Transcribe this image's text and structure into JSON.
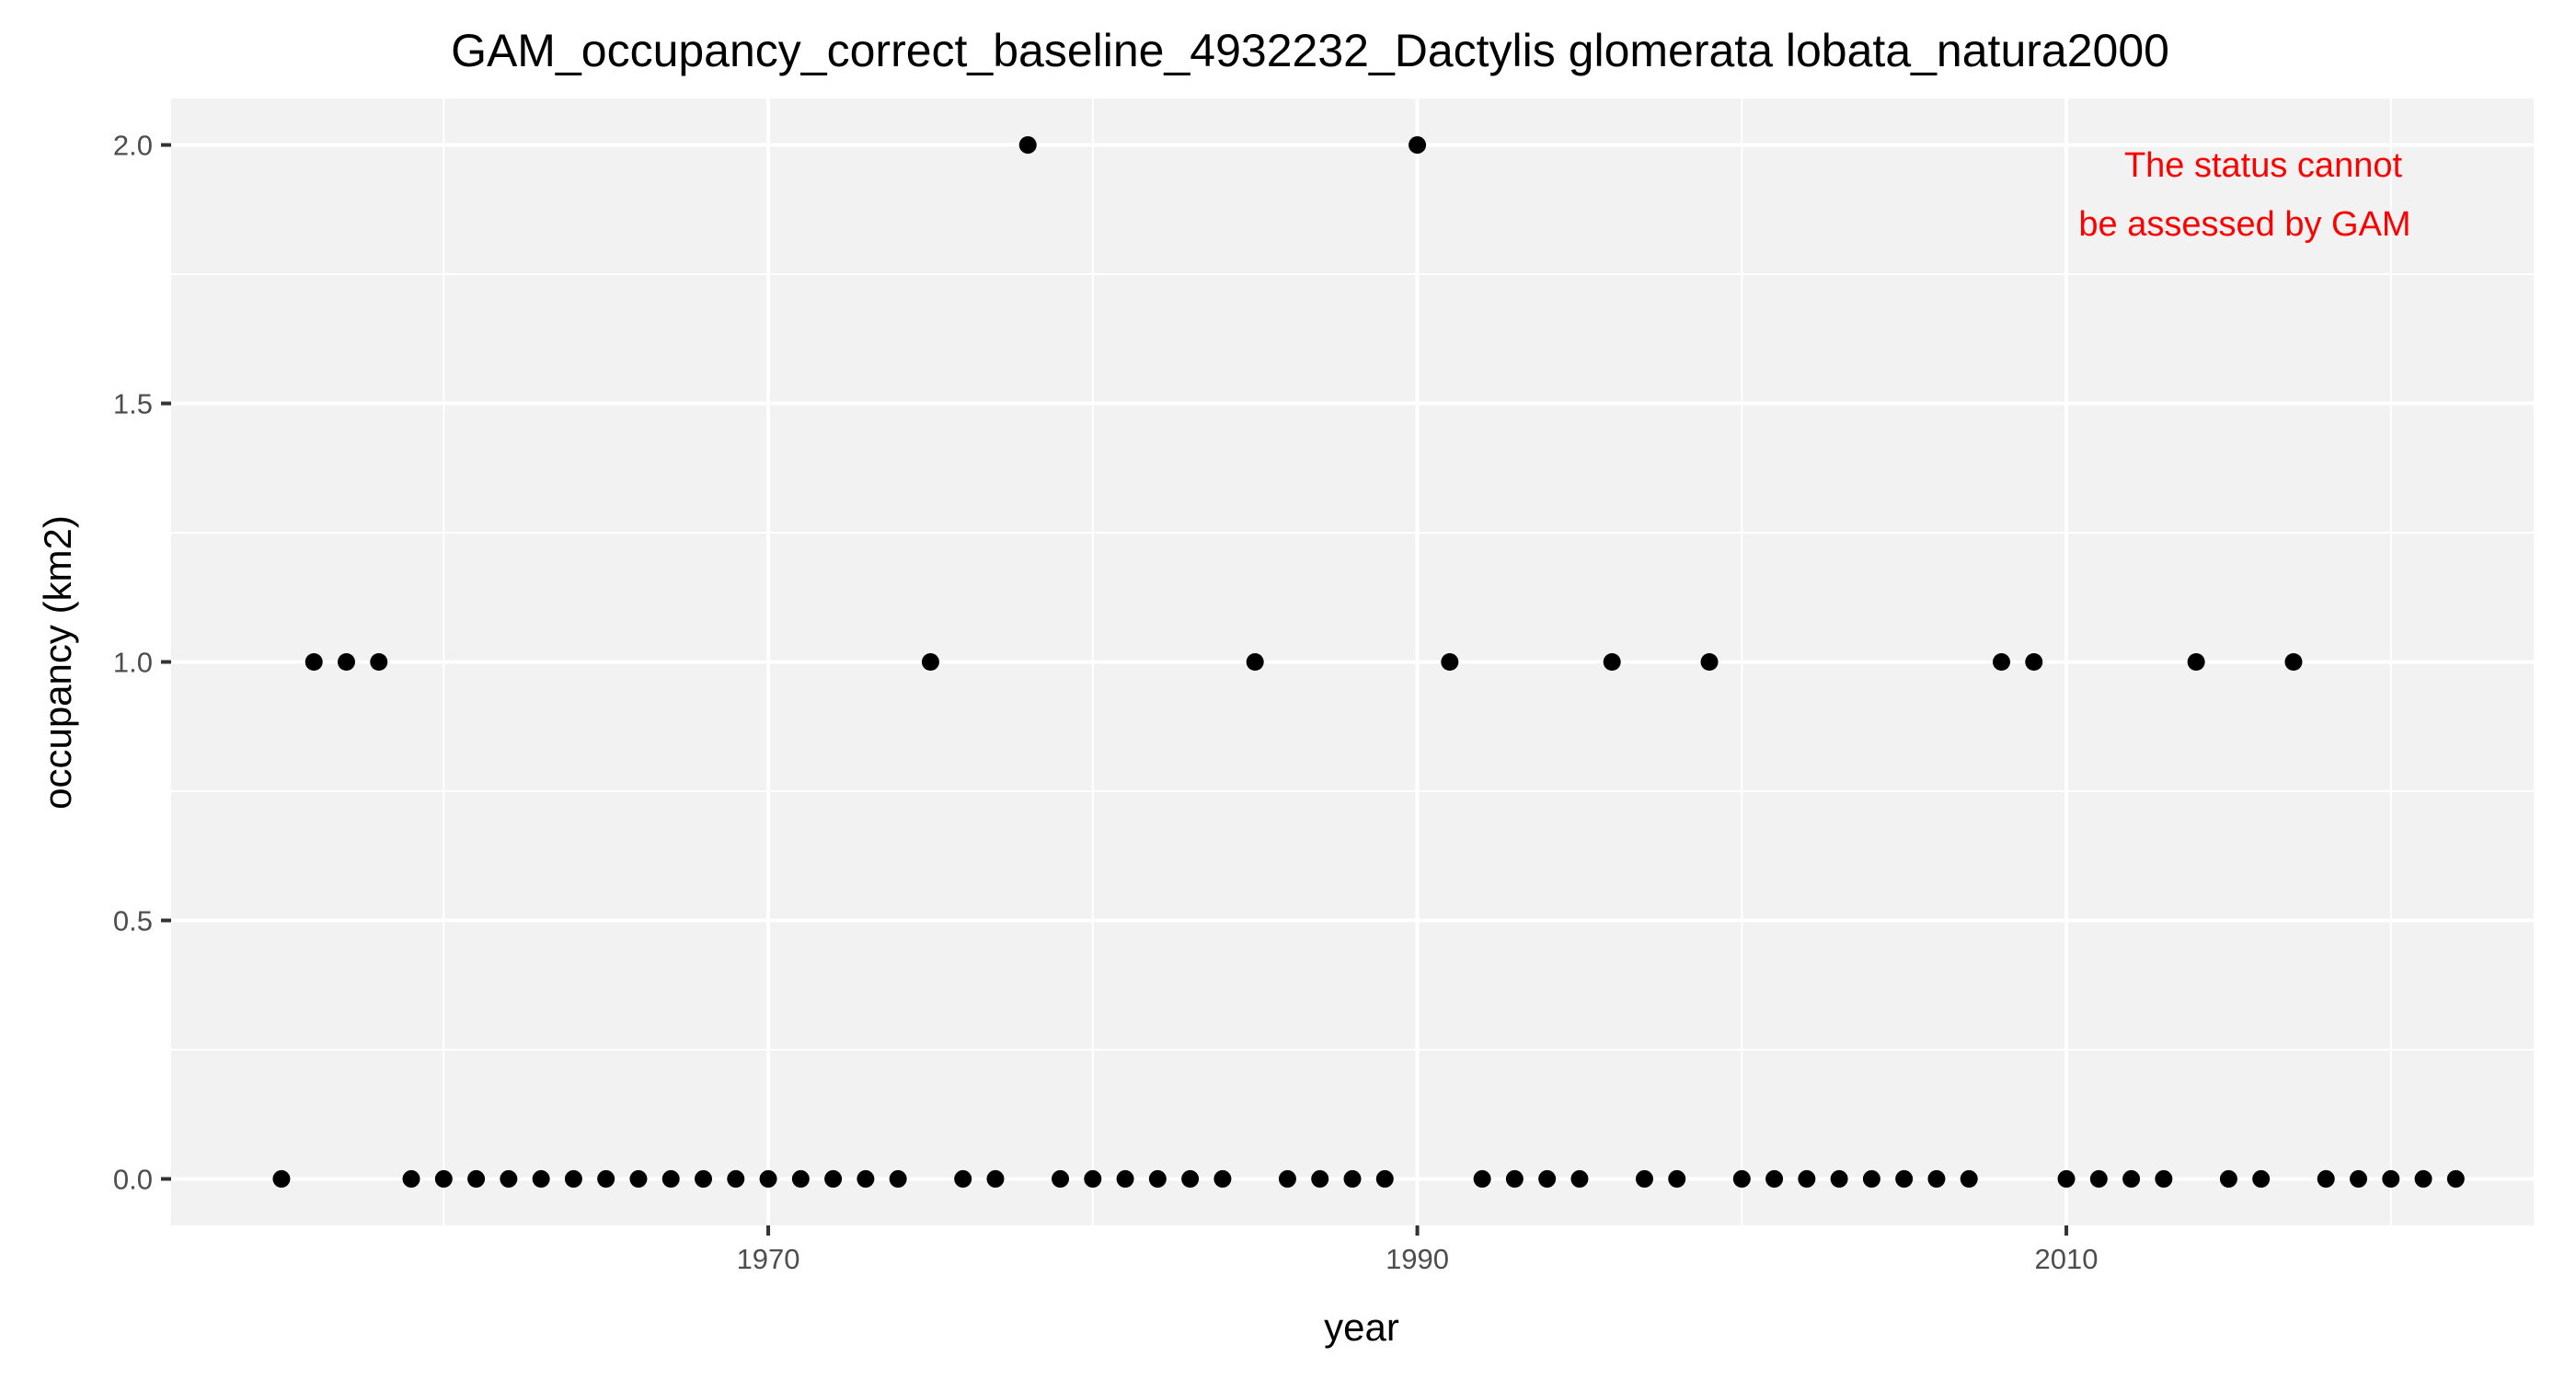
{
  "chart_data": {
    "type": "scatter",
    "title": "GAM_occupancy_correct_baseline_4932232_Dactylis glomerata lobata_natura2000",
    "xlabel": "year",
    "ylabel": "occupancy (km2)",
    "xlim": [
      1951.6,
      2024.4
    ],
    "ylim": [
      -0.09,
      2.09
    ],
    "x_ticks": [
      1970,
      1990,
      2010
    ],
    "x_tick_labels": [
      "1970",
      "1990",
      "2010"
    ],
    "y_ticks": [
      0.0,
      0.5,
      1.0,
      1.5,
      2.0
    ],
    "y_tick_labels": [
      "0.0",
      "0.5",
      "1.0",
      "1.5",
      "2.0"
    ],
    "grid": true,
    "annotation_lines": [
      "The status cannot",
      "be assessed by GAM"
    ],
    "annotation_color": "#ff0000",
    "panel_color": "#f2f2f2",
    "grid_color": "#ffffff",
    "point_color": "#000000",
    "x": [
      1955,
      1956,
      1957,
      1958,
      1959,
      1960,
      1961,
      1962,
      1963,
      1964,
      1965,
      1966,
      1967,
      1968,
      1969,
      1970,
      1971,
      1972,
      1973,
      1974,
      1975,
      1976,
      1977,
      1978,
      1979,
      1980,
      1981,
      1982,
      1983,
      1984,
      1985,
      1986,
      1987,
      1988,
      1989,
      1990,
      1991,
      1992,
      1993,
      1994,
      1995,
      1996,
      1997,
      1998,
      1999,
      2000,
      2001,
      2002,
      2003,
      2004,
      2005,
      2006,
      2007,
      2008,
      2009,
      2010,
      2011,
      2012,
      2013,
      2014,
      2015,
      2016,
      2017,
      2018,
      2019,
      2020,
      2021,
      2022
    ],
    "y": [
      0,
      1,
      1,
      1,
      0,
      0,
      0,
      0,
      0,
      0,
      0,
      0,
      0,
      0,
      0,
      0,
      0,
      0,
      0,
      0,
      1,
      0,
      0,
      2,
      0,
      0,
      0,
      0,
      0,
      0,
      1,
      0,
      0,
      0,
      0,
      2,
      1,
      0,
      0,
      0,
      0,
      1,
      0,
      0,
      1,
      0,
      0,
      0,
      0,
      0,
      0,
      0,
      0,
      1,
      1,
      0,
      0,
      0,
      0,
      1,
      0,
      0,
      1,
      0,
      0,
      0,
      0,
      0
    ]
  }
}
